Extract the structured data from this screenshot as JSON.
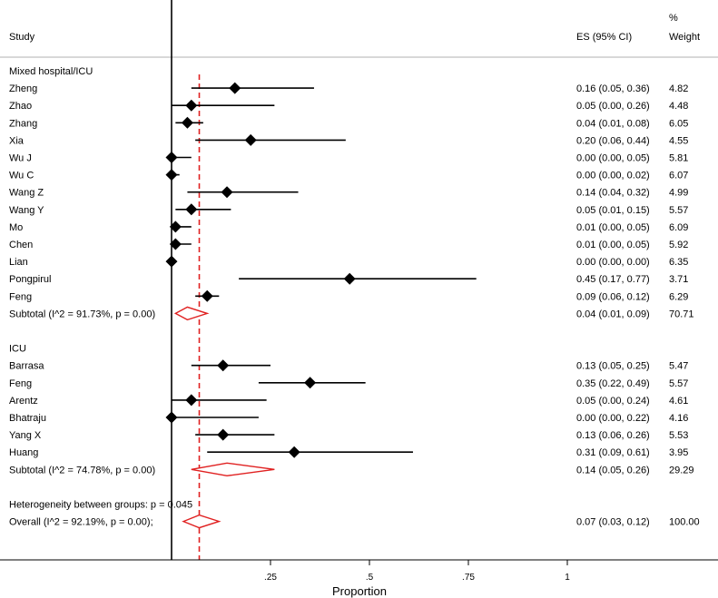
{
  "chart_data": {
    "type": "forest",
    "xlabel": "Proportion",
    "xlim": [
      0,
      1
    ],
    "xticks": [
      {
        "value": 0.25,
        "label": ".25"
      },
      {
        "value": 0.5,
        "label": ".5"
      },
      {
        "value": 0.75,
        "label": ".75"
      },
      {
        "value": 1,
        "label": "1"
      }
    ],
    "null_line": 0,
    "overall_line": 0.07,
    "headers": {
      "study": "Study",
      "es": "ES (95% CI)",
      "weight_top": "%",
      "weight_bottom": "Weight"
    },
    "rows": [
      {
        "kind": "group",
        "label": "Mixed hospital/ICU"
      },
      {
        "kind": "study",
        "label": "Zheng",
        "es": 0.16,
        "lo": 0.05,
        "hi": 0.36,
        "es_text": "0.16 (0.05, 0.36)",
        "weight": "4.82"
      },
      {
        "kind": "study",
        "label": "Zhao",
        "es": 0.05,
        "lo": 0.0,
        "hi": 0.26,
        "es_text": "0.05 (0.00, 0.26)",
        "weight": "4.48"
      },
      {
        "kind": "study",
        "label": "Zhang",
        "es": 0.04,
        "lo": 0.01,
        "hi": 0.08,
        "es_text": "0.04 (0.01, 0.08)",
        "weight": "6.05"
      },
      {
        "kind": "study",
        "label": "Xia",
        "es": 0.2,
        "lo": 0.06,
        "hi": 0.44,
        "es_text": "0.20 (0.06, 0.44)",
        "weight": "4.55"
      },
      {
        "kind": "study",
        "label": "Wu J",
        "es": 0.0,
        "lo": 0.0,
        "hi": 0.05,
        "es_text": "0.00 (0.00, 0.05)",
        "weight": "5.81"
      },
      {
        "kind": "study",
        "label": "Wu C",
        "es": 0.0,
        "lo": 0.0,
        "hi": 0.02,
        "es_text": "0.00 (0.00, 0.02)",
        "weight": "6.07"
      },
      {
        "kind": "study",
        "label": "Wang Z",
        "es": 0.14,
        "lo": 0.04,
        "hi": 0.32,
        "es_text": "0.14 (0.04, 0.32)",
        "weight": "4.99"
      },
      {
        "kind": "study",
        "label": "Wang Y",
        "es": 0.05,
        "lo": 0.01,
        "hi": 0.15,
        "es_text": "0.05 (0.01, 0.15)",
        "weight": "5.57"
      },
      {
        "kind": "study",
        "label": "Mo",
        "es": 0.01,
        "lo": 0.0,
        "hi": 0.05,
        "es_text": "0.01 (0.00, 0.05)",
        "weight": "6.09"
      },
      {
        "kind": "study",
        "label": "Chen",
        "es": 0.01,
        "lo": 0.0,
        "hi": 0.05,
        "es_text": "0.01 (0.00, 0.05)",
        "weight": "5.92"
      },
      {
        "kind": "study",
        "label": "Lian",
        "es": 0.0,
        "lo": 0.0,
        "hi": 0.0,
        "es_text": "0.00 (0.00, 0.00)",
        "weight": "6.35"
      },
      {
        "kind": "study",
        "label": "Pongpirul",
        "es": 0.45,
        "lo": 0.17,
        "hi": 0.77,
        "es_text": "0.45 (0.17, 0.77)",
        "weight": "3.71"
      },
      {
        "kind": "study",
        "label": "Feng",
        "es": 0.09,
        "lo": 0.06,
        "hi": 0.12,
        "es_text": "0.09 (0.06, 0.12)",
        "weight": "6.29"
      },
      {
        "kind": "subtotal",
        "label": "Subtotal  (I^2 = 91.73%, p = 0.00)",
        "es": 0.04,
        "lo": 0.01,
        "hi": 0.09,
        "es_text": "0.04 (0.01, 0.09)",
        "weight": "70.71"
      },
      {
        "kind": "blank"
      },
      {
        "kind": "group",
        "label": "ICU"
      },
      {
        "kind": "study",
        "label": "Barrasa",
        "es": 0.13,
        "lo": 0.05,
        "hi": 0.25,
        "es_text": "0.13 (0.05, 0.25)",
        "weight": "5.47"
      },
      {
        "kind": "study",
        "label": "Feng",
        "es": 0.35,
        "lo": 0.22,
        "hi": 0.49,
        "es_text": "0.35 (0.22, 0.49)",
        "weight": "5.57"
      },
      {
        "kind": "study",
        "label": "Arentz",
        "es": 0.05,
        "lo": 0.0,
        "hi": 0.24,
        "es_text": "0.05 (0.00, 0.24)",
        "weight": "4.61"
      },
      {
        "kind": "study",
        "label": "Bhatraju",
        "es": 0.0,
        "lo": 0.0,
        "hi": 0.22,
        "es_text": "0.00 (0.00, 0.22)",
        "weight": "4.16"
      },
      {
        "kind": "study",
        "label": "Yang X",
        "es": 0.13,
        "lo": 0.06,
        "hi": 0.26,
        "es_text": "0.13 (0.06, 0.26)",
        "weight": "5.53"
      },
      {
        "kind": "study",
        "label": "Huang",
        "es": 0.31,
        "lo": 0.09,
        "hi": 0.61,
        "es_text": "0.31 (0.09, 0.61)",
        "weight": "3.95"
      },
      {
        "kind": "subtotal",
        "label": "Subtotal  (I^2 = 74.78%, p = 0.00)",
        "es": 0.14,
        "lo": 0.05,
        "hi": 0.26,
        "es_text": "0.14 (0.05, 0.26)",
        "weight": "29.29"
      },
      {
        "kind": "blank"
      },
      {
        "kind": "note",
        "label": "Heterogeneity between groups: p = 0.045"
      },
      {
        "kind": "subtotal",
        "label": "Overall  (I^2 = 92.19%, p = 0.00);",
        "es": 0.07,
        "lo": 0.03,
        "hi": 0.12,
        "es_text": "0.07 (0.03, 0.12)",
        "weight": "100.00"
      }
    ]
  }
}
